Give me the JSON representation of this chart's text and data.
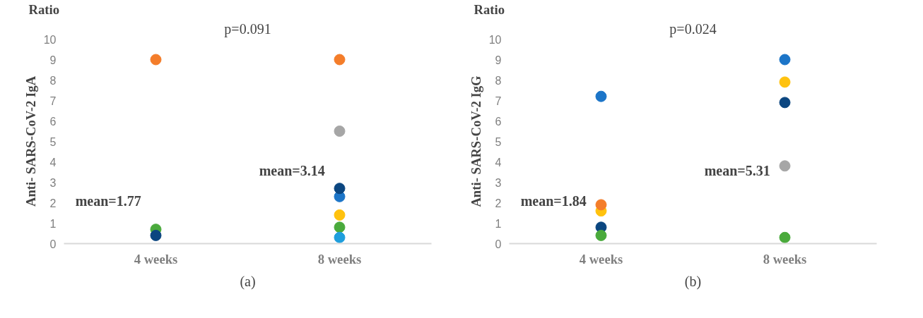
{
  "chart_data": [
    {
      "type": "scatter",
      "title": "(a)",
      "ylabel": "Anti- SARS-CoV-2 IgA",
      "categories": [
        "4 weeks",
        "8 weeks"
      ],
      "ylim": [
        0,
        10
      ],
      "yticks": [
        0,
        1,
        2,
        3,
        4,
        5,
        6,
        7,
        8,
        9,
        10
      ],
      "grid": false,
      "marker": "circle",
      "series": [
        {
          "color": "#f47d2a",
          "values": [
            9,
            9
          ]
        },
        {
          "color": "#a6a6a6",
          "values": [
            null,
            5.5
          ]
        },
        {
          "color": "#1c75c8",
          "values": [
            null,
            2.3
          ]
        },
        {
          "color": "#ffc20e",
          "values": [
            null,
            1.4
          ]
        },
        {
          "color": "#4aaa3c",
          "values": [
            0.7,
            0.8
          ]
        },
        {
          "color": "#1f9edc",
          "values": [
            null,
            0.3
          ]
        },
        {
          "color": "#0b4680",
          "values": [
            0.4,
            2.7
          ]
        }
      ],
      "annotations": [
        "Ratio",
        "p=0.091",
        "mean=1.77",
        "mean=3.14"
      ]
    },
    {
      "type": "scatter",
      "title": "(b)",
      "ylabel": "Anti- SARS-CoV-2 IgG",
      "categories": [
        "4 weeks",
        "8 weeks"
      ],
      "ylim": [
        0,
        10
      ],
      "yticks": [
        0,
        1,
        2,
        3,
        4,
        5,
        6,
        7,
        8,
        9,
        10
      ],
      "grid": false,
      "marker": "circle",
      "series": [
        {
          "color": "#1c75c8",
          "values": [
            7.2,
            9
          ]
        },
        {
          "color": "#ffc20e",
          "values": [
            1.6,
            7.9
          ]
        },
        {
          "color": "#0b4680",
          "values": [
            0.8,
            6.9
          ]
        },
        {
          "color": "#a6a6a6",
          "values": [
            null,
            3.8
          ]
        },
        {
          "color": "#f47d2a",
          "values": [
            1.9,
            null
          ]
        },
        {
          "color": "#4aaa3c",
          "values": [
            0.4,
            0.3
          ]
        }
      ],
      "annotations": [
        "Ratio",
        "p=0.024",
        "mean=1.84",
        "mean=5.31"
      ]
    }
  ]
}
